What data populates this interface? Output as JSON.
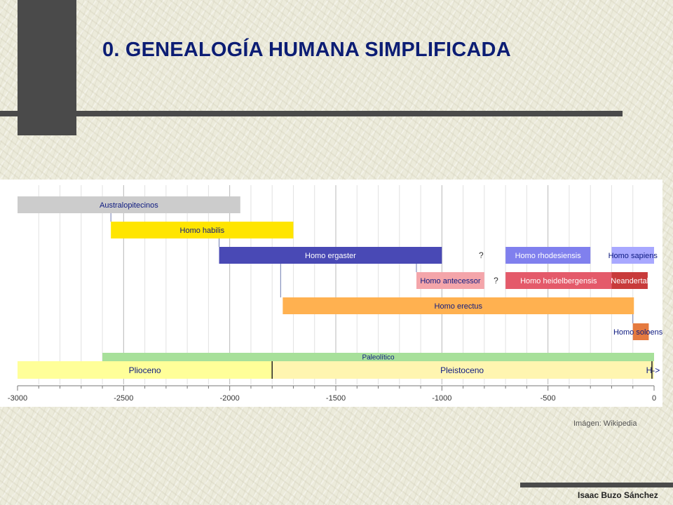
{
  "slide": {
    "title": "0. GENEALOGÍA HUMANA SIMPLIFICADA",
    "image_credit": "Imágen: Wikipedia",
    "author": "Isaac Buzo Sánchez"
  },
  "chart_data": {
    "type": "timeline",
    "title": "",
    "xlabel": "",
    "ylabel": "",
    "xlim": [
      -3000,
      0
    ],
    "x_ticks": [
      -3000,
      -2500,
      -2000,
      -1500,
      -1000,
      -500,
      0
    ],
    "grid": true,
    "rows": [
      {
        "label": "Australopitecinos",
        "start": -3000,
        "end": -1950,
        "row": 0,
        "color": "#cccccc",
        "text_color": "#0d1a80"
      },
      {
        "label": "Homo habilis",
        "start": -2560,
        "end": -1700,
        "row": 1,
        "color": "#ffe500",
        "text_color": "#0d1a80"
      },
      {
        "label": "Homo ergaster",
        "start": -2050,
        "end": -1000,
        "row": 2,
        "color": "#4949b5",
        "text_color": "#ffffff",
        "question_mark": -815
      },
      {
        "label": "Homo antecessor",
        "start": -1120,
        "end": -800,
        "row": 3,
        "color": "#f4a5aa",
        "text_color": "#0d1a80",
        "question_mark": -745
      },
      {
        "label": "Homo rhodesiensis",
        "start": -700,
        "end": -300,
        "row": 2,
        "color": "#8080ee",
        "text_color": "#ffffff"
      },
      {
        "label": "Homo sapiens",
        "start": -200,
        "end": 0,
        "row": 2,
        "color": "#a8a8ff",
        "text_color": "#0d1a80"
      },
      {
        "label": "Homo heidelbergensis",
        "start": -700,
        "end": -200,
        "row": 3,
        "color": "#e45a6a",
        "text_color": "#ffffff"
      },
      {
        "label": "Neandertal",
        "start": -200,
        "end": -30,
        "row": 3,
        "color": "#c83b3b",
        "text_color": "#ffffff"
      },
      {
        "label": "Homo erectus",
        "start": -1750,
        "end": -95,
        "row": 4,
        "color": "#ffb150",
        "text_color": "#0d1a80"
      },
      {
        "label": "Homo soloensis",
        "start": -100,
        "end": -25,
        "row": 5,
        "color": "#e57a3f",
        "text_color": "#0d1a80"
      }
    ],
    "links": [
      {
        "x": -2560,
        "from_row": 0,
        "to_row": 1
      },
      {
        "x": -2050,
        "from_row": 1,
        "to_row": 2
      },
      {
        "x": -1760,
        "from_row": 2,
        "to_row": 4
      },
      {
        "x": -1120,
        "from_row": 2,
        "to_row": 3
      },
      {
        "x": -100,
        "from_row": 4,
        "to_row": 5
      }
    ],
    "epochs": [
      {
        "label": "Paleolítico",
        "start": -2600,
        "end": 0,
        "band": "top",
        "color": "#a7e09a"
      },
      {
        "label": "Plioceno",
        "start": -3000,
        "end": -1800,
        "band": "bottom",
        "color": "#ffff99"
      },
      {
        "label": "Pleistoceno",
        "start": -1800,
        "end": -10,
        "band": "bottom",
        "color": "#fff5b0"
      },
      {
        "label": "H->",
        "start": -10,
        "end": 0,
        "band": "bottom",
        "color": "#fff5b0"
      }
    ]
  }
}
